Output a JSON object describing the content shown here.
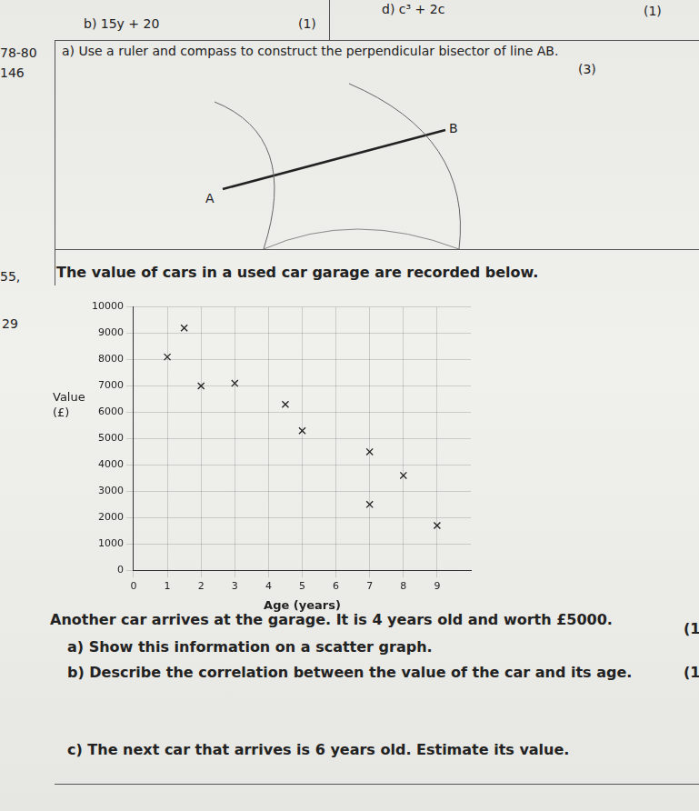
{
  "page": {
    "top_questions": [
      {
        "text": "b) 15y + 20",
        "marks": "(1)"
      },
      {
        "text": "d) c³ + 2c",
        "marks": "(1)"
      }
    ],
    "margin_notes": [
      "78-80",
      "146",
      "55,",
      "29"
    ],
    "construction": {
      "question": "a) Use a ruler and compass to construct the perpendicular bisector of line AB.",
      "marks": "(3)",
      "point_a": "A",
      "point_b": "B"
    },
    "intro": "The value of cars in a used car garage are recorded below.",
    "statement": "Another car arrives at the garage. It is 4 years old and worth £5000.",
    "questions": [
      {
        "text": "a) Show this information on a scatter graph.",
        "marks": "(1"
      },
      {
        "text": "b) Describe the correlation between the value of the car and its age.",
        "marks": "(1"
      },
      {
        "text": "c) The next car that arrives is 6 years old. Estimate its value."
      }
    ]
  },
  "chart_data": {
    "type": "scatter",
    "x_label": "Age (years)",
    "y_label": "Value (£)",
    "x": [
      1,
      1.5,
      2,
      3,
      4.5,
      5,
      7,
      8,
      7,
      9
    ],
    "values": [
      8100,
      9200,
      7000,
      7100,
      6300,
      5300,
      4500,
      3600,
      2500,
      1700
    ],
    "color": "#222222",
    "marker": "x",
    "xlim": [
      0,
      10
    ],
    "xticks": [
      0,
      1,
      2,
      3,
      4,
      5,
      6,
      7,
      8,
      9
    ],
    "ylim": [
      0,
      10000
    ],
    "yticks": [
      0,
      1000,
      2000,
      3000,
      4000,
      5000,
      6000,
      7000,
      8000,
      9000,
      10000
    ],
    "grid": true
  }
}
